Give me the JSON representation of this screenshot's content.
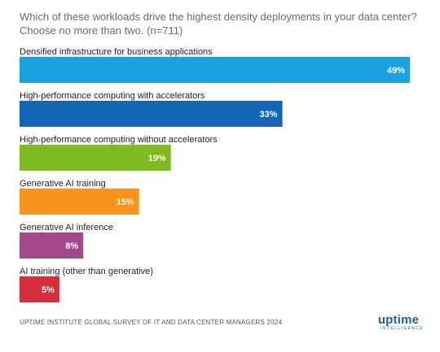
{
  "chart_data": {
    "type": "bar",
    "orientation": "horizontal",
    "title_lines": [
      "Which of these workloads drive the highest density deployments in your data center?",
      "Choose no more than two. (n=711)"
    ],
    "categories": [
      "Densified infrastructure for business applications",
      "High-performance computing with accelerators",
      "High-performance computing without accelerators",
      "Generative AI training",
      "Generative AI inference",
      "AI training (other than generative)"
    ],
    "values": [
      49,
      33,
      19,
      15,
      8,
      5
    ],
    "value_labels": [
      "49%",
      "33%",
      "19%",
      "15%",
      "8%",
      "5%"
    ],
    "colors": [
      "#1ba0e2",
      "#1565b7",
      "#7fbb1f",
      "#f7941d",
      "#a4488d",
      "#d62e3c"
    ],
    "unit": "%",
    "grid": false,
    "legend": "none"
  },
  "footer": {
    "source": "UPTIME INSTITUTE GLOBAL SURVEY OF IT AND DATA CENTER MANAGERS 2024"
  },
  "logo": {
    "name": "uptime",
    "subtitle": "INTELLIGENCE"
  }
}
